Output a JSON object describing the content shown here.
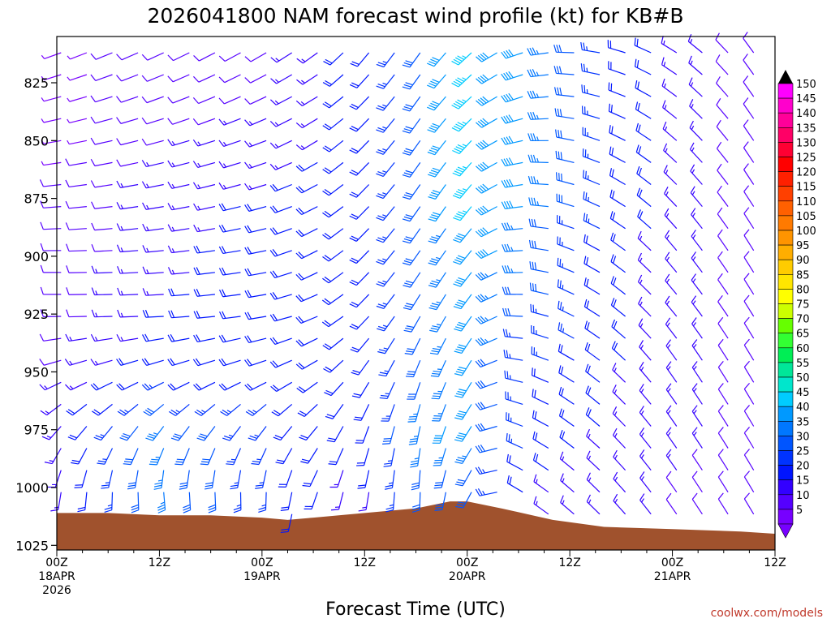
{
  "chart_data": {
    "type": "wind-barb-profile",
    "title": "2026041800 NAM forecast wind profile (kt) for KB#B",
    "xlabel": "Forecast Time (UTC)",
    "ylabel": "",
    "units": "kt",
    "y_ticks": [
      "825",
      "850",
      "875",
      "900",
      "925",
      "950",
      "975",
      "1000",
      "1025"
    ],
    "y_tick_values": [
      825,
      850,
      875,
      900,
      925,
      950,
      975,
      1000,
      1025
    ],
    "ylim_hpa": [
      805,
      1027
    ],
    "x_ticks": [
      {
        "line1": "00Z",
        "line2": "18APR",
        "line3": "2026",
        "hour": 0
      },
      {
        "line1": "12Z",
        "line2": "",
        "line3": "",
        "hour": 12
      },
      {
        "line1": "00Z",
        "line2": "19APR",
        "line3": "",
        "hour": 24
      },
      {
        "line1": "12Z",
        "line2": "",
        "line3": "",
        "hour": 36
      },
      {
        "line1": "00Z",
        "line2": "20APR",
        "line3": "",
        "hour": 48
      },
      {
        "line1": "12Z",
        "line2": "",
        "line3": "",
        "hour": 60
      },
      {
        "line1": "00Z",
        "line2": "21APR",
        "line3": "",
        "hour": 72
      },
      {
        "line1": "12Z",
        "line2": "",
        "line3": "",
        "hour": 84
      }
    ],
    "xlim_hours": [
      0,
      84
    ],
    "surface_pressure": {
      "hours": [
        0,
        6,
        12,
        18,
        24,
        27,
        30,
        36,
        42,
        46,
        48,
        52,
        58,
        64,
        72,
        80,
        84
      ],
      "hpa": [
        1011,
        1011,
        1012,
        1012,
        1013,
        1014,
        1013,
        1011,
        1009,
        1006,
        1006,
        1009,
        1014,
        1017,
        1018,
        1019,
        1020
      ]
    },
    "colorbar": {
      "labels": [
        "150",
        "145",
        "140",
        "135",
        "130",
        "125",
        "120",
        "115",
        "110",
        "105",
        "100",
        "95",
        "90",
        "85",
        "80",
        "75",
        "70",
        "65",
        "60",
        "55",
        "50",
        "45",
        "40",
        "35",
        "30",
        "25",
        "20",
        "15",
        "10",
        "5"
      ],
      "colors": [
        "#ff00ff",
        "#ff00cc",
        "#ff0099",
        "#ff0066",
        "#ff0033",
        "#ff0000",
        "#ff2000",
        "#ff4000",
        "#ff6000",
        "#ff7a00",
        "#ff9400",
        "#ffae00",
        "#ffcc00",
        "#ffe600",
        "#ffff00",
        "#ccff00",
        "#66ff00",
        "#33ff33",
        "#00ee55",
        "#00e699",
        "#00e6cc",
        "#00ccff",
        "#0099ff",
        "#0077ff",
        "#0055ff",
        "#0033ff",
        "#0015ff",
        "#3300ff",
        "#5500ff",
        "#7700ff"
      ]
    },
    "fill_colors": {
      "ground": "#a0522d",
      "frame": "#000000"
    },
    "wind_field": {
      "hours": [
        0,
        12,
        24,
        30,
        36,
        42,
        48,
        54,
        60,
        72,
        84
      ],
      "levels_hpa": [
        810,
        830,
        850,
        875,
        900,
        925,
        950,
        975,
        1000
      ],
      "direction_deg": [
        [
          250,
          245,
          240,
          235,
          220,
          215,
          225,
          250,
          270,
          300,
          330
        ],
        [
          255,
          250,
          245,
          240,
          225,
          215,
          225,
          250,
          275,
          305,
          330
        ],
        [
          260,
          255,
          250,
          240,
          225,
          215,
          220,
          255,
          280,
          310,
          330
        ],
        [
          265,
          260,
          255,
          245,
          225,
          215,
          215,
          260,
          285,
          315,
          330
        ],
        [
          270,
          265,
          260,
          245,
          225,
          215,
          215,
          265,
          290,
          320,
          330
        ],
        [
          270,
          268,
          262,
          250,
          225,
          210,
          210,
          270,
          295,
          320,
          330
        ],
        [
          250,
          250,
          250,
          240,
          215,
          200,
          205,
          280,
          300,
          325,
          330
        ],
        [
          220,
          215,
          215,
          220,
          200,
          190,
          205,
          290,
          305,
          325,
          330
        ],
        [
          190,
          175,
          180,
          200,
          190,
          180,
          200,
          300,
          310,
          325,
          330
        ]
      ],
      "speed_kt": [
        [
          5,
          10,
          10,
          15,
          20,
          30,
          45,
          40,
          30,
          15,
          10
        ],
        [
          5,
          10,
          12,
          15,
          20,
          30,
          45,
          40,
          30,
          15,
          10
        ],
        [
          5,
          12,
          15,
          17,
          20,
          30,
          45,
          40,
          30,
          15,
          10
        ],
        [
          8,
          15,
          18,
          18,
          20,
          30,
          45,
          40,
          30,
          15,
          10
        ],
        [
          8,
          15,
          20,
          20,
          20,
          30,
          40,
          35,
          25,
          15,
          10
        ],
        [
          10,
          18,
          20,
          20,
          20,
          30,
          40,
          30,
          25,
          15,
          10
        ],
        [
          12,
          20,
          20,
          20,
          20,
          30,
          40,
          25,
          20,
          15,
          10
        ],
        [
          15,
          35,
          25,
          20,
          20,
          35,
          40,
          25,
          20,
          15,
          10
        ],
        [
          15,
          35,
          25,
          18,
          15,
          30,
          30,
          20,
          15,
          12,
          8
        ]
      ]
    },
    "credit": "coolwx.com/models"
  }
}
